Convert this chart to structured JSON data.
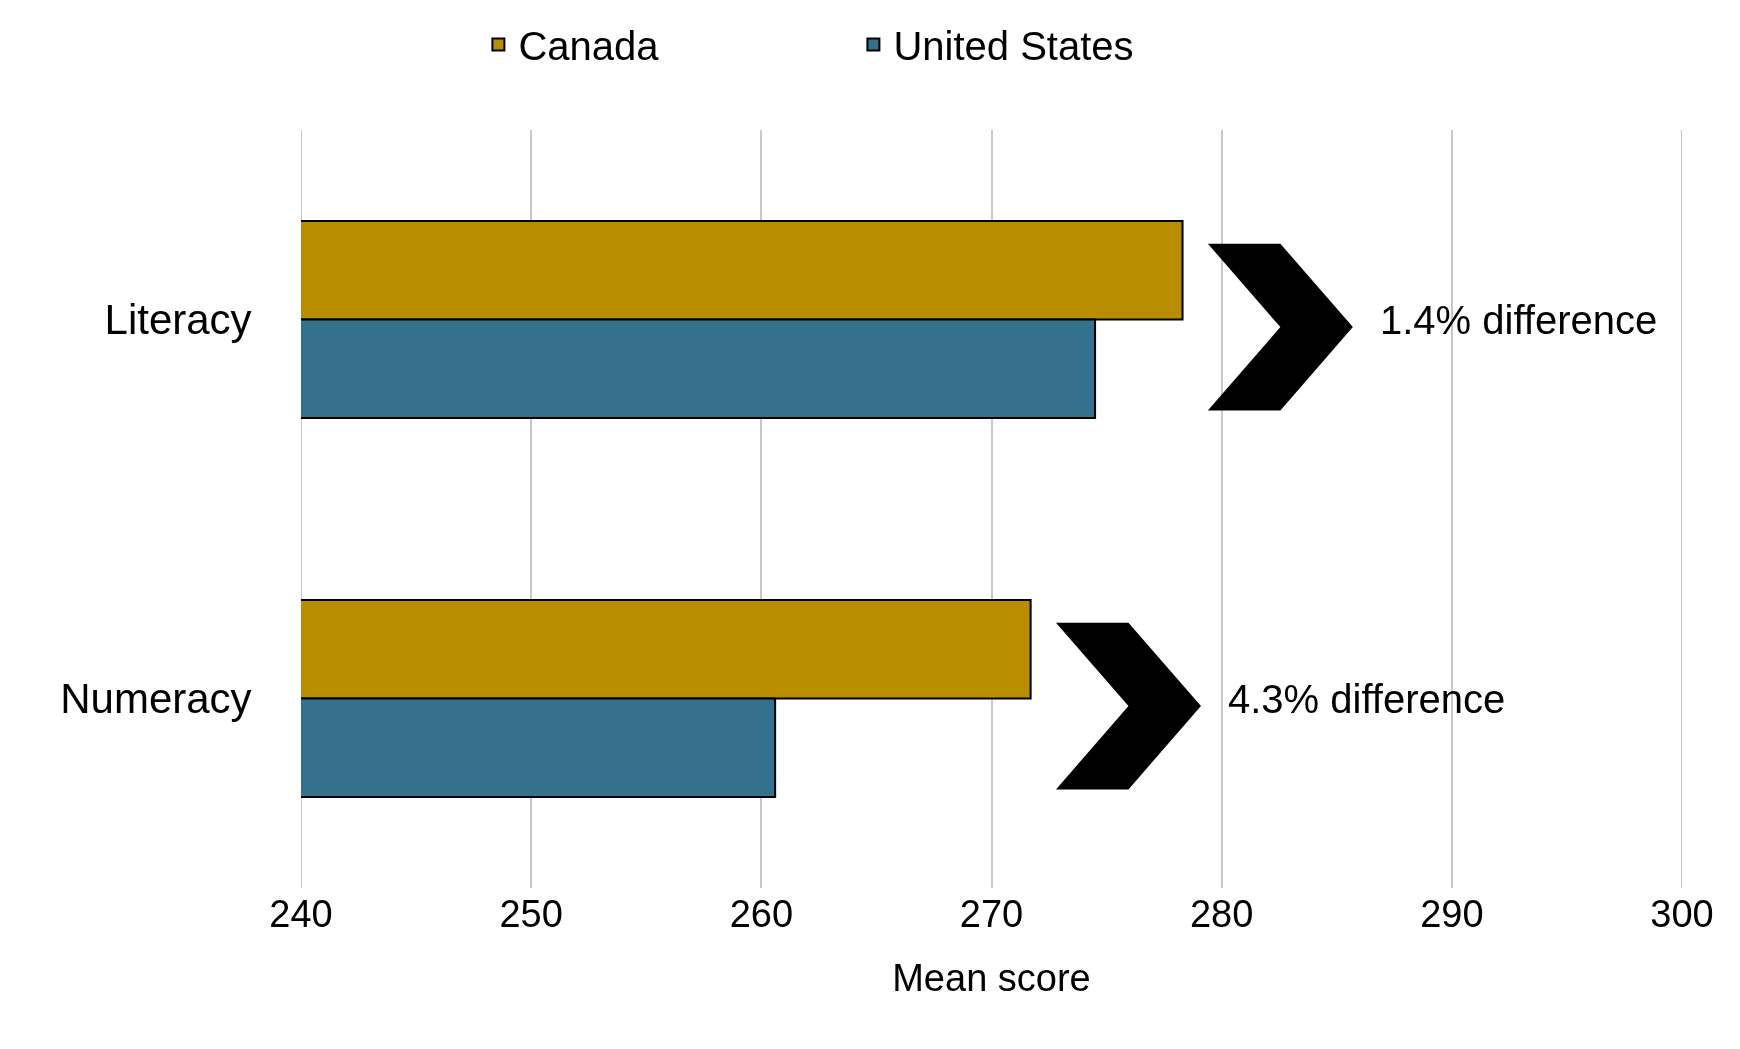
{
  "chart_data": {
    "type": "bar",
    "orientation": "horizontal",
    "categories": [
      "Literacy",
      "Numeracy"
    ],
    "series": [
      {
        "name": "Canada",
        "color": "#b98d00",
        "values": [
          278.3,
          271.7
        ]
      },
      {
        "name": "United States",
        "color": "#33718c",
        "values": [
          274.5,
          260.6
        ]
      }
    ],
    "xlabel": "Mean score",
    "xlim": [
      240,
      300
    ],
    "xticks": [
      240,
      250,
      260,
      270,
      280,
      290,
      300
    ],
    "grid": "x",
    "legend": "top",
    "annotations": [
      "1.4% difference",
      "4.3% difference"
    ]
  }
}
